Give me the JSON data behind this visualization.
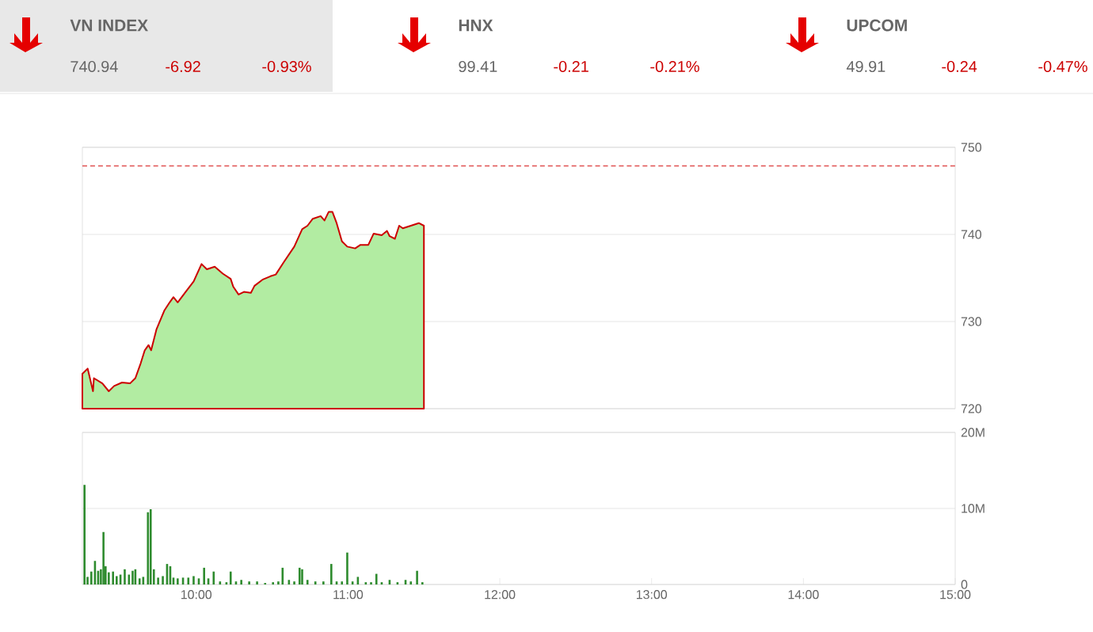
{
  "chart_data": [
    {
      "type": "other",
      "categories": [
        "VN INDEX",
        "HNX",
        "UPCOM"
      ],
      "annotations": [
        "740.94",
        "-6.92",
        "-0.93%",
        "99.41",
        "-0.21",
        "-0.21%",
        "49.91",
        "-0.24",
        "-0.47%"
      ]
    },
    {
      "type": "area",
      "xlim": [
        9.25,
        15
      ],
      "ylim": [
        720,
        750
      ],
      "yticks": [
        720,
        730,
        740,
        750
      ],
      "grid": "y",
      "tick_labels": "y",
      "ref_lines": [
        {
          "axis": "y",
          "value": 747.86,
          "color": "#e05050",
          "line_style": "dashed"
        }
      ],
      "series": [
        {
          "color": "#cc0000",
          "x": [
            9.25,
            9.285,
            9.32,
            9.326,
            9.382,
            9.424,
            9.459,
            9.511,
            9.564,
            9.599,
            9.634,
            9.661,
            9.686,
            9.703,
            9.738,
            9.791,
            9.825,
            9.85,
            9.878,
            9.93,
            9.983,
            10.035,
            10.07,
            10.122,
            10.175,
            10.227,
            10.244,
            10.279,
            10.314,
            10.36,
            10.384,
            10.436,
            10.489,
            10.524,
            10.576,
            10.646,
            10.698,
            10.733,
            10.768,
            10.82,
            10.845,
            10.873,
            10.897,
            10.925,
            10.96,
            10.995,
            11.047,
            11.082,
            11.134,
            11.169,
            11.222,
            11.257,
            11.274,
            11.309,
            11.337,
            11.361,
            11.414,
            11.466,
            11.5
          ],
          "values": [
            724.0,
            724.6,
            722.0,
            723.5,
            722.9,
            722.0,
            722.6,
            723.0,
            722.9,
            723.5,
            725.2,
            726.7,
            727.3,
            726.7,
            729.1,
            731.3,
            732.2,
            732.8,
            732.2,
            733.4,
            734.6,
            736.6,
            736.0,
            736.3,
            735.5,
            734.9,
            734.0,
            733.1,
            733.4,
            733.3,
            734.1,
            734.8,
            735.2,
            735.4,
            736.8,
            738.6,
            740.6,
            741.0,
            741.8,
            742.1,
            741.6,
            742.6,
            742.6,
            741.3,
            739.2,
            738.6,
            738.4,
            738.8,
            738.8,
            740.1,
            739.9,
            740.4,
            739.8,
            739.5,
            741.0,
            740.7,
            741.0,
            741.3,
            741.0
          ]
        }
      ]
    },
    {
      "type": "bar",
      "xlim": [
        9.25,
        15
      ],
      "ylim": [
        0,
        20
      ],
      "grid": "y",
      "xticks": [
        {
          "value": 10,
          "label": "10:00"
        },
        {
          "value": 11,
          "label": "11:00"
        },
        {
          "value": 12,
          "label": "12:00"
        },
        {
          "value": 13,
          "label": "13:00"
        },
        {
          "value": 14,
          "label": "14:00"
        },
        {
          "value": 15,
          "label": "15:00"
        }
      ],
      "yticks": [
        0,
        {
          "value": 10,
          "label": "10M"
        },
        {
          "value": 20,
          "label": "20M"
        }
      ],
      "series": [
        {
          "color": "#2e8b2e",
          "x": [
            9.264,
            9.284,
            9.309,
            9.333,
            9.354,
            9.372,
            9.389,
            9.403,
            9.424,
            9.452,
            9.476,
            9.501,
            9.529,
            9.557,
            9.581,
            9.599,
            9.627,
            9.651,
            9.682,
            9.7,
            9.721,
            9.749,
            9.78,
            9.808,
            9.829,
            9.85,
            9.878,
            9.913,
            9.948,
            9.983,
            10.017,
            10.052,
            10.08,
            10.115,
            10.157,
            10.199,
            10.227,
            10.262,
            10.297,
            10.349,
            10.401,
            10.454,
            10.506,
            10.541,
            10.569,
            10.611,
            10.646,
            10.681,
            10.698,
            10.733,
            10.785,
            10.838,
            10.89,
            10.925,
            10.96,
            10.995,
            11.03,
            11.065,
            11.117,
            11.152,
            11.187,
            11.222,
            11.274,
            11.326,
            11.379,
            11.414,
            11.455,
            11.49
          ],
          "values": [
            13.1,
            1.0,
            1.7,
            3.1,
            1.8,
            2.0,
            6.9,
            2.4,
            1.6,
            1.7,
            1.1,
            1.3,
            2.0,
            1.3,
            1.8,
            2.0,
            0.8,
            1.0,
            9.5,
            9.9,
            2.0,
            0.9,
            1.1,
            2.7,
            2.4,
            0.9,
            0.8,
            0.9,
            0.9,
            1.1,
            0.8,
            2.2,
            0.8,
            1.7,
            0.4,
            0.3,
            1.7,
            0.4,
            0.6,
            0.4,
            0.4,
            0.2,
            0.3,
            0.4,
            2.2,
            0.6,
            0.4,
            2.2,
            2.0,
            0.6,
            0.4,
            0.4,
            2.7,
            0.4,
            0.4,
            4.2,
            0.4,
            1.0,
            0.3,
            0.3,
            1.4,
            0.3,
            0.6,
            0.3,
            0.6,
            0.4,
            1.8,
            0.3
          ]
        }
      ]
    }
  ]
}
